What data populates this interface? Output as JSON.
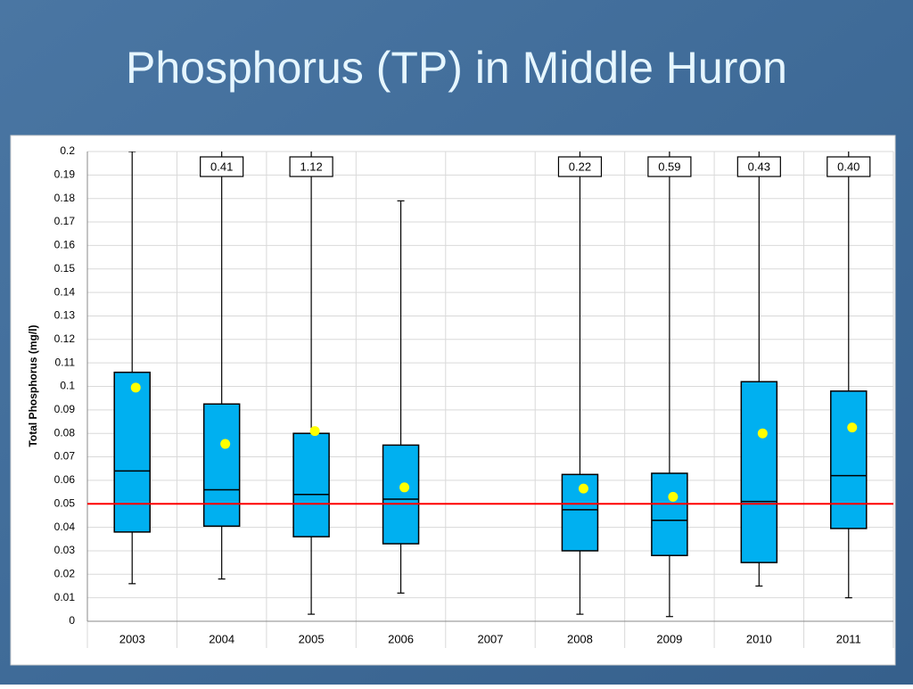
{
  "chart_data": {
    "type": "box",
    "title": "Phosphorus (TP) in Middle Huron",
    "y_label": "Total Phosphorus (mg/l)",
    "categories": [
      "2003",
      "2004",
      "2005",
      "2006",
      "2007",
      "2008",
      "2009",
      "2010",
      "2011"
    ],
    "min": [
      0.016,
      0.018,
      0.003,
      0.012,
      null,
      0.003,
      0.002,
      0.015,
      0.01
    ],
    "q1": [
      0.038,
      0.0405,
      0.036,
      0.033,
      null,
      0.03,
      0.028,
      0.025,
      0.0395
    ],
    "median": [
      0.064,
      0.056,
      0.054,
      0.052,
      null,
      0.0475,
      0.043,
      0.051,
      0.062
    ],
    "q3": [
      0.106,
      0.0925,
      0.08,
      0.075,
      null,
      0.0625,
      0.063,
      0.102,
      0.098
    ],
    "max": [
      0.2,
      0.41,
      1.12,
      0.179,
      null,
      0.22,
      0.59,
      0.43,
      0.4
    ],
    "max_labels": [
      null,
      "0.41",
      "1.12",
      null,
      null,
      "0.22",
      "0.59",
      "0.43",
      "0.40"
    ],
    "mean": [
      0.0995,
      0.0755,
      0.081,
      0.057,
      null,
      0.0565,
      0.053,
      0.08,
      0.0825
    ],
    "box_color": "#00b0f0",
    "mean_color": "#ffff00",
    "reference_line": {
      "value": 0.05,
      "color": "#ff0000"
    },
    "ylim": [
      0,
      0.2
    ],
    "yticks": [
      0,
      0.01,
      0.02,
      0.03,
      0.04,
      0.05,
      0.06,
      0.07,
      0.08,
      0.09,
      0.1,
      0.11,
      0.12,
      0.13,
      0.14,
      0.15,
      0.16,
      0.17,
      0.18,
      0.19,
      0.2
    ],
    "grid": true
  }
}
